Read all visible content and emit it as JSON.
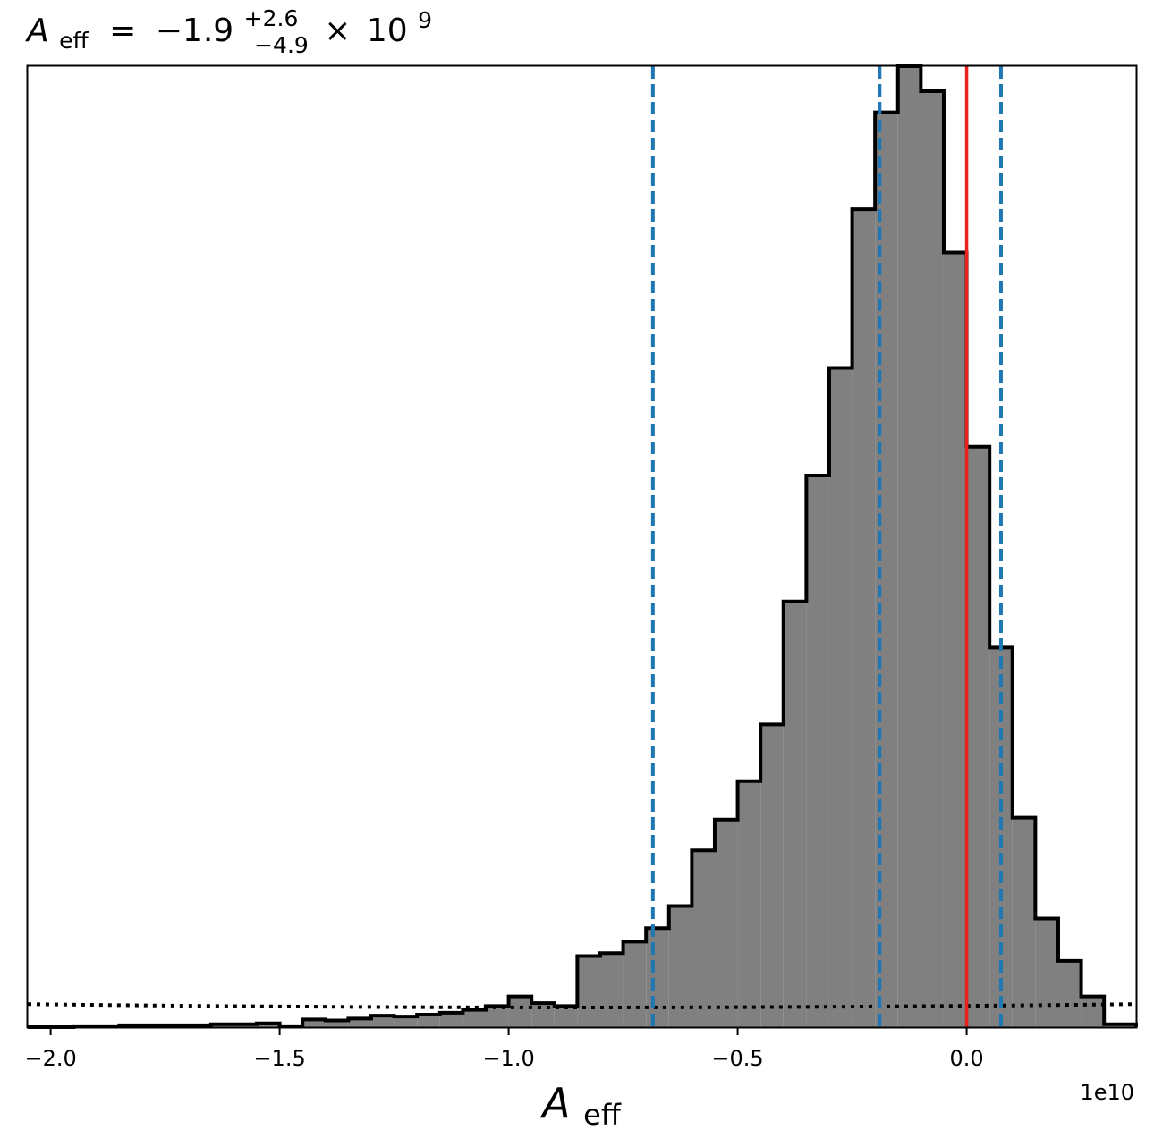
{
  "chart_data": {
    "type": "histogram",
    "title": {
      "symbol": "A",
      "subscript": "eff",
      "equals": "=",
      "value": "−1.9",
      "upper_err": "+2.6",
      "lower_err": "−4.9",
      "times": "×",
      "base": "10",
      "exponent": "9"
    },
    "xlabel": {
      "symbol": "A",
      "subscript": "eff"
    },
    "xlim": [
      -2.05,
      0.37
    ],
    "x_scale_label": "1e10",
    "x_ticks": [
      {
        "value": -2.0,
        "label": "−2.0"
      },
      {
        "value": -1.5,
        "label": "−1.5"
      },
      {
        "value": -1.0,
        "label": "−1.0"
      },
      {
        "value": -0.5,
        "label": "−0.5"
      },
      {
        "value": 0.0,
        "label": "0.0"
      }
    ],
    "ylim": [
      0,
      1
    ],
    "y_ticks": [],
    "bin_edges": [
      -2.05,
      -1.95,
      -1.85,
      -1.75,
      -1.65,
      -1.55,
      -1.5,
      -1.45,
      -1.4,
      -1.35,
      -1.3,
      -1.25,
      -1.2,
      -1.15,
      -1.1,
      -1.05,
      -1.0,
      -0.95,
      -0.9,
      -0.85,
      -0.8,
      -0.75,
      -0.7,
      -0.65,
      -0.6,
      -0.55,
      -0.5,
      -0.45,
      -0.4,
      -0.35,
      -0.3,
      -0.25,
      -0.2,
      -0.15,
      -0.1,
      -0.05,
      0.0,
      0.05,
      0.1,
      0.15,
      0.2,
      0.25,
      0.3,
      0.37
    ],
    "bin_heights": [
      0.0,
      0.001,
      0.002,
      0.002,
      0.003,
      0.004,
      0.001,
      0.008,
      0.007,
      0.009,
      0.012,
      0.011,
      0.013,
      0.015,
      0.018,
      0.022,
      0.032,
      0.025,
      0.022,
      0.074,
      0.077,
      0.089,
      0.103,
      0.126,
      0.184,
      0.216,
      0.256,
      0.315,
      0.443,
      0.574,
      0.686,
      0.851,
      0.952,
      1.0,
      0.974,
      0.806,
      0.604,
      0.395,
      0.218,
      0.113,
      0.069,
      0.032,
      0.003
    ],
    "vertical_lines": [
      {
        "x": -0.685,
        "style": "dashed",
        "color": "#1f77b4"
      },
      {
        "x": -0.19,
        "style": "dashed",
        "color": "#1f77b4"
      },
      {
        "x": 0.075,
        "style": "dashed",
        "color": "#1f77b4"
      },
      {
        "x": 0.0,
        "style": "solid",
        "color": "#e8211c"
      }
    ],
    "prior_line": {
      "style": "dotted",
      "color": "#000000",
      "y_start": 0.024,
      "y_mid": 0.021,
      "y_end": 0.024
    },
    "colors": {
      "fill": "#808080",
      "edge": "#000000"
    }
  }
}
